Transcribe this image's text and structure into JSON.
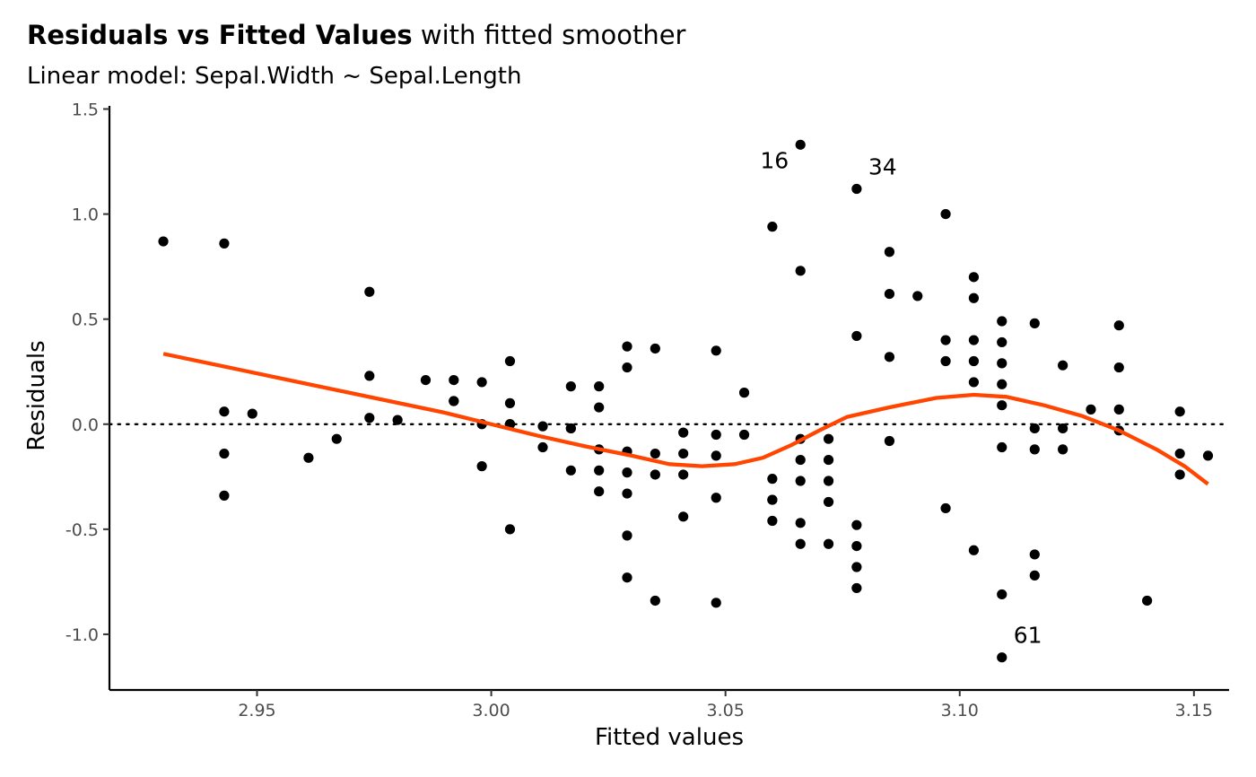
{
  "chart_data": {
    "type": "scatter",
    "title_bold": "Residuals vs Fitted Values",
    "title_rest": " with fitted smoother",
    "subtitle": "Linear model: Sepal.Width ~ Sepal.Length",
    "xlabel": "Fitted values",
    "ylabel": "Residuals",
    "xlim": [
      2.9185,
      3.1575
    ],
    "ylim": [
      -1.265,
      1.515
    ],
    "x_ticks": [
      {
        "value": 2.95,
        "label": "2.95"
      },
      {
        "value": 3.0,
        "label": "3.00"
      },
      {
        "value": 3.05,
        "label": "3.05"
      },
      {
        "value": 3.1,
        "label": "3.10"
      },
      {
        "value": 3.15,
        "label": "3.15"
      }
    ],
    "y_ticks": [
      {
        "value": 1.5,
        "label": "1.5"
      },
      {
        "value": 1.0,
        "label": "1.0"
      },
      {
        "value": 0.5,
        "label": "0.5"
      },
      {
        "value": 0.0,
        "label": "0.0"
      },
      {
        "value": -0.5,
        "label": "-0.5"
      },
      {
        "value": -1.0,
        "label": "-1.0"
      }
    ],
    "reference_line": {
      "y": 0,
      "style": "dotted"
    },
    "points": [
      [
        2.93,
        0.87
      ],
      [
        2.943,
        0.86
      ],
      [
        2.943,
        0.06
      ],
      [
        2.943,
        -0.14
      ],
      [
        2.943,
        -0.34
      ],
      [
        2.949,
        0.05
      ],
      [
        2.961,
        -0.16
      ],
      [
        2.967,
        -0.07
      ],
      [
        2.974,
        0.63
      ],
      [
        2.974,
        0.23
      ],
      [
        2.974,
        0.03
      ],
      [
        2.98,
        0.02
      ],
      [
        2.986,
        0.21
      ],
      [
        2.992,
        0.21
      ],
      [
        2.992,
        0.11
      ],
      [
        2.992,
        0.11
      ],
      [
        2.998,
        0.2
      ],
      [
        2.998,
        0.0
      ],
      [
        2.998,
        -0.2
      ],
      [
        3.004,
        0.3
      ],
      [
        3.004,
        0.1
      ],
      [
        3.004,
        0.0
      ],
      [
        3.004,
        0.0
      ],
      [
        3.004,
        -0.5
      ],
      [
        3.011,
        -0.01
      ],
      [
        3.011,
        -0.11
      ],
      [
        3.017,
        0.18
      ],
      [
        3.017,
        -0.02
      ],
      [
        3.017,
        -0.02
      ],
      [
        3.017,
        -0.22
      ],
      [
        3.023,
        0.18
      ],
      [
        3.023,
        0.08
      ],
      [
        3.023,
        -0.12
      ],
      [
        3.023,
        -0.22
      ],
      [
        3.023,
        -0.32
      ],
      [
        3.029,
        0.37
      ],
      [
        3.029,
        0.27
      ],
      [
        3.029,
        -0.13
      ],
      [
        3.029,
        -0.23
      ],
      [
        3.029,
        -0.33
      ],
      [
        3.029,
        -0.53
      ],
      [
        3.029,
        -0.73
      ],
      [
        3.035,
        0.36
      ],
      [
        3.035,
        -0.14
      ],
      [
        3.035,
        -0.24
      ],
      [
        3.035,
        -0.84
      ],
      [
        3.041,
        -0.04
      ],
      [
        3.041,
        -0.14
      ],
      [
        3.041,
        -0.24
      ],
      [
        3.041,
        -0.44
      ],
      [
        3.048,
        0.35
      ],
      [
        3.048,
        -0.05
      ],
      [
        3.048,
        -0.15
      ],
      [
        3.048,
        -0.35
      ],
      [
        3.048,
        -0.85
      ],
      [
        3.054,
        0.15
      ],
      [
        3.054,
        -0.05
      ],
      [
        3.06,
        0.94
      ],
      [
        3.06,
        -0.26
      ],
      [
        3.06,
        -0.36
      ],
      [
        3.06,
        -0.36
      ],
      [
        3.06,
        -0.46
      ],
      [
        3.066,
        1.33
      ],
      [
        3.066,
        0.73
      ],
      [
        3.066,
        -0.07
      ],
      [
        3.066,
        -0.17
      ],
      [
        3.066,
        -0.27
      ],
      [
        3.066,
        -0.47
      ],
      [
        3.066,
        -0.57
      ],
      [
        3.072,
        -0.07
      ],
      [
        3.072,
        -0.17
      ],
      [
        3.072,
        -0.27
      ],
      [
        3.072,
        -0.37
      ],
      [
        3.072,
        -0.57
      ],
      [
        3.078,
        1.12
      ],
      [
        3.078,
        0.42
      ],
      [
        3.078,
        -0.48
      ],
      [
        3.078,
        -0.58
      ],
      [
        3.078,
        -0.68
      ],
      [
        3.078,
        -0.78
      ],
      [
        3.085,
        0.82
      ],
      [
        3.085,
        0.62
      ],
      [
        3.085,
        0.32
      ],
      [
        3.085,
        -0.08
      ],
      [
        3.091,
        0.61
      ],
      [
        3.097,
        1.0
      ],
      [
        3.097,
        0.4
      ],
      [
        3.097,
        0.3
      ],
      [
        3.097,
        -0.4
      ],
      [
        3.103,
        0.7
      ],
      [
        3.103,
        0.6
      ],
      [
        3.103,
        0.4
      ],
      [
        3.103,
        0.3
      ],
      [
        3.103,
        0.2
      ],
      [
        3.103,
        -0.6
      ],
      [
        3.109,
        0.49
      ],
      [
        3.109,
        0.39
      ],
      [
        3.109,
        0.29
      ],
      [
        3.109,
        0.19
      ],
      [
        3.109,
        0.09
      ],
      [
        3.109,
        -0.11
      ],
      [
        3.109,
        -0.81
      ],
      [
        3.109,
        -1.11
      ],
      [
        3.116,
        0.48
      ],
      [
        3.116,
        -0.02
      ],
      [
        3.116,
        -0.12
      ],
      [
        3.116,
        -0.62
      ],
      [
        3.116,
        -0.72
      ],
      [
        3.122,
        0.28
      ],
      [
        3.122,
        -0.02
      ],
      [
        3.122,
        -0.12
      ],
      [
        3.128,
        0.07
      ],
      [
        3.134,
        0.47
      ],
      [
        3.134,
        0.27
      ],
      [
        3.134,
        0.07
      ],
      [
        3.134,
        -0.03
      ],
      [
        3.14,
        -0.84
      ],
      [
        3.147,
        0.06
      ],
      [
        3.147,
        -0.14
      ],
      [
        3.147,
        -0.24
      ],
      [
        3.153,
        -0.15
      ]
    ],
    "annotations": [
      {
        "label": "16",
        "x": 3.066,
        "y": 1.33,
        "side": "left"
      },
      {
        "label": "34",
        "x": 3.078,
        "y": 1.12,
        "side": "right"
      },
      {
        "label": "61",
        "x": 3.109,
        "y": -1.11,
        "side": "right"
      }
    ],
    "smoother": {
      "color": "#FF4500",
      "points": [
        [
          2.93,
          0.335
        ],
        [
          2.945,
          0.265
        ],
        [
          2.96,
          0.195
        ],
        [
          2.975,
          0.125
        ],
        [
          2.99,
          0.055
        ],
        [
          3.0,
          0.0
        ],
        [
          3.01,
          -0.055
        ],
        [
          3.02,
          -0.105
        ],
        [
          3.03,
          -0.15
        ],
        [
          3.038,
          -0.19
        ],
        [
          3.045,
          -0.2
        ],
        [
          3.052,
          -0.19
        ],
        [
          3.058,
          -0.16
        ],
        [
          3.064,
          -0.1
        ],
        [
          3.07,
          -0.03
        ],
        [
          3.076,
          0.035
        ],
        [
          3.085,
          0.08
        ],
        [
          3.095,
          0.125
        ],
        [
          3.103,
          0.14
        ],
        [
          3.11,
          0.13
        ],
        [
          3.118,
          0.09
        ],
        [
          3.126,
          0.04
        ],
        [
          3.134,
          -0.03
        ],
        [
          3.142,
          -0.12
        ],
        [
          3.148,
          -0.2
        ],
        [
          3.153,
          -0.285
        ]
      ]
    }
  }
}
